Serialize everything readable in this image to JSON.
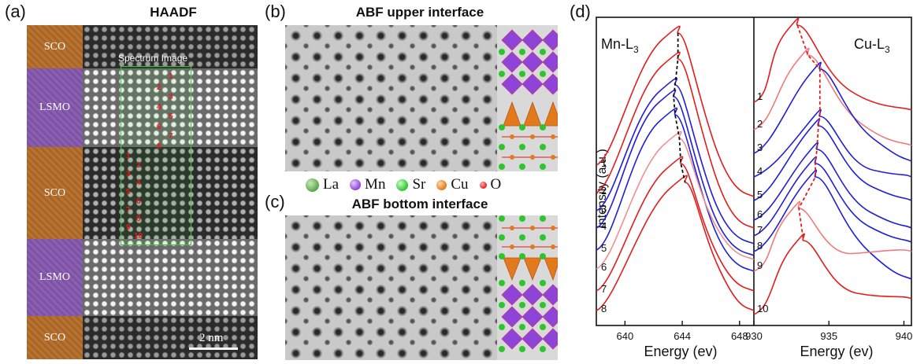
{
  "panels": {
    "a": {
      "letter": "(a)",
      "title": "HAADF",
      "layers": [
        "SCO",
        "LSMO",
        "SCO",
        "LSMO",
        "SCO"
      ],
      "spectrum_title": "Spectrum Image",
      "scale_label": "2 nm",
      "points": [
        "1",
        "2",
        "3",
        "4",
        "5",
        "6",
        "7",
        "8",
        "1",
        "2",
        "3",
        "4",
        "5",
        "6",
        "7",
        "8",
        "9",
        "10"
      ]
    },
    "b": {
      "letter": "(b)",
      "title": "ABF upper interface"
    },
    "c": {
      "letter": "(c)",
      "title": "ABF bottom interface"
    },
    "d": {
      "letter": "(d)"
    }
  },
  "legend": [
    {
      "label": "La",
      "color": "#5aa64a"
    },
    {
      "label": "Mn",
      "color": "#8e44d6"
    },
    {
      "label": "Sr",
      "color": "#2ec42e"
    },
    {
      "label": "Cu",
      "color": "#e07a1a"
    },
    {
      "label": "O",
      "color": "#e02020"
    }
  ],
  "chart_data": {
    "type": "line",
    "ylabel": "Intensity (a.u.)",
    "xlabel": "Energy (ev)",
    "subplots": [
      {
        "label": "Mn-L3",
        "xlim": [
          638,
          649
        ],
        "xticks": [
          640,
          644,
          648
        ],
        "curve_labels": [
          "1",
          "2",
          "3",
          "4",
          "5",
          "6",
          "7",
          "8"
        ],
        "peak_energy": [
          643.7,
          643.7,
          643.5,
          643.4,
          643.5,
          643.8,
          643.9,
          644.2
        ],
        "colors": [
          "#e21d1d",
          "#e21d1d",
          "#1f1fd6",
          "#1f1fd6",
          "#1f1fd6",
          "#f09090",
          "#e21d1d",
          "#e21d1d"
        ]
      },
      {
        "label": "Cu-L3",
        "xlim": [
          930,
          940.5
        ],
        "xticks": [
          930,
          935,
          940
        ],
        "curve_labels": [
          "1",
          "2",
          "3",
          "4",
          "5",
          "6",
          "7",
          "8",
          "9",
          "10"
        ],
        "peak_energy": [
          932.9,
          933.6,
          934.4,
          934.4,
          934.3,
          934.2,
          934.1,
          934.1,
          933.0,
          933.3
        ],
        "colors": [
          "#e21d1d",
          "#f07a7a",
          "#1f1fd6",
          "#1f1fd6",
          "#1f1fd6",
          "#1f1fd6",
          "#1f1fd6",
          "#1f1fd6",
          "#f07a7a",
          "#e21d1d"
        ]
      }
    ]
  }
}
